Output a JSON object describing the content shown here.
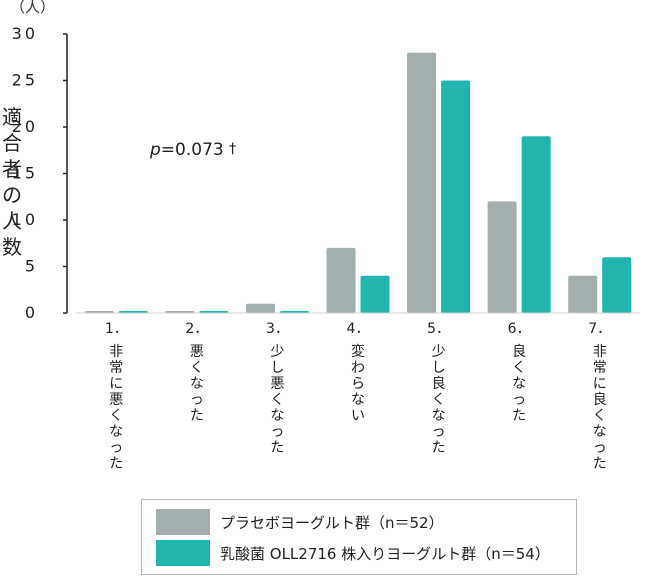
{
  "chart_data": {
    "type": "bar",
    "unit": "（人）",
    "ylabel": "適合者の人数",
    "ylim": [
      0,
      30
    ],
    "yticks": [
      0,
      5,
      10,
      15,
      20,
      25,
      30
    ],
    "categories": [
      "1．非常に悪くなった",
      "2．悪くなった",
      "3．少し悪くなった",
      "4．変わらない",
      "5．少し良くなった",
      "6．良くなった",
      "7．非常に良くなった"
    ],
    "series": [
      {
        "name": "プラセボヨーグルト群（n＝52）",
        "color": "#a3aeae",
        "values": [
          0,
          0,
          1,
          7,
          28,
          12,
          4
        ]
      },
      {
        "name": "乳酸菌 OLL2716 株入りヨーグルト群（n＝54）",
        "color": "#22b5b0",
        "values": [
          0,
          0,
          0,
          4,
          25,
          19,
          6
        ]
      }
    ],
    "annotation": {
      "italic": "p",
      "text": "=0.073",
      "mark": "†"
    },
    "legend_position": "bottom",
    "grid": false
  }
}
